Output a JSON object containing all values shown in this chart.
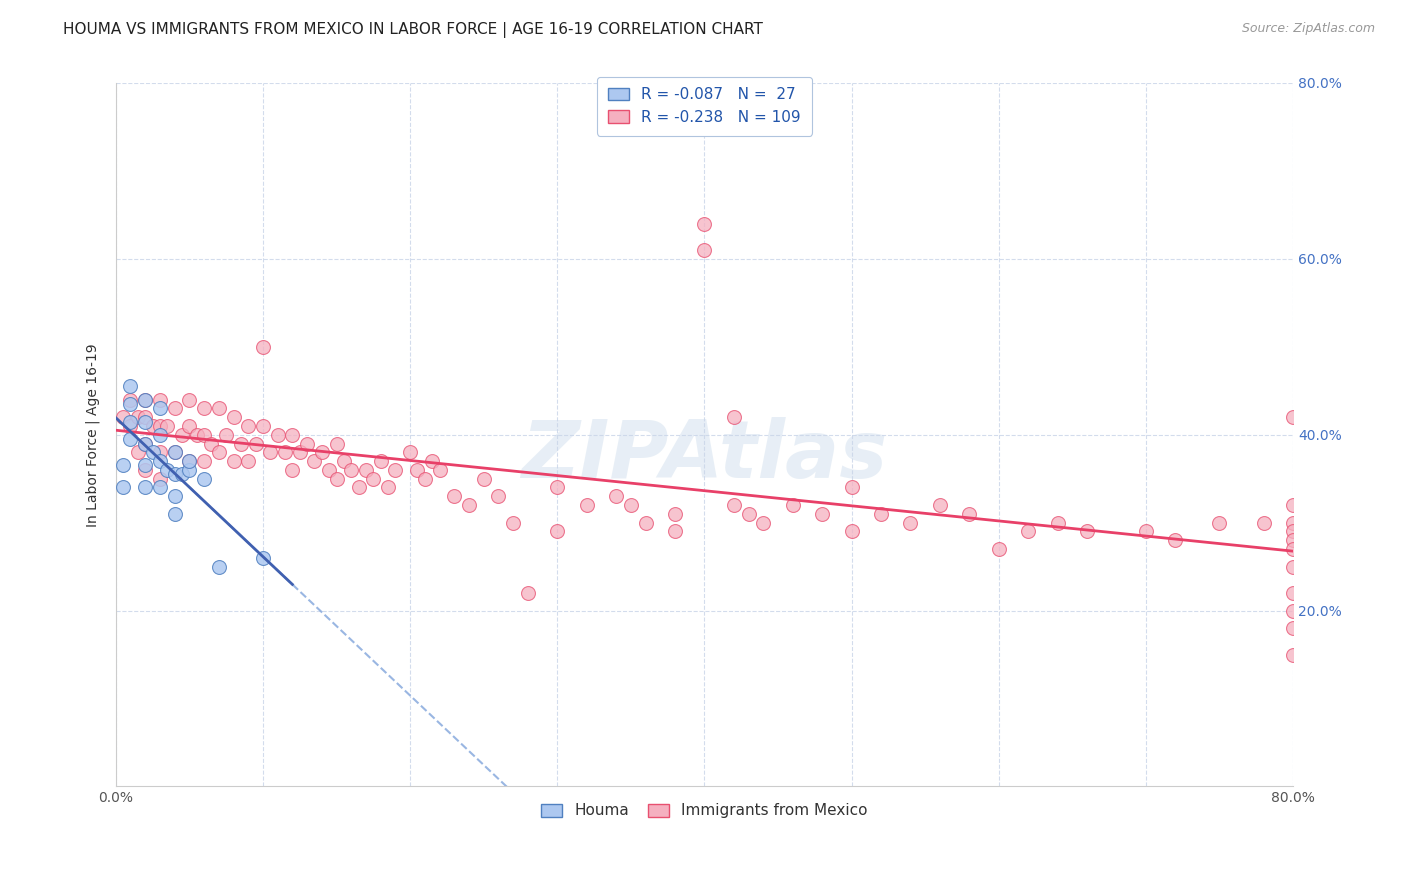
{
  "title": "HOUMA VS IMMIGRANTS FROM MEXICO IN LABOR FORCE | AGE 16-19 CORRELATION CHART",
  "source": "Source: ZipAtlas.com",
  "ylabel": "In Labor Force | Age 16-19",
  "legend_label_1": "Houma",
  "legend_label_2": "Immigrants from Mexico",
  "r1": -0.087,
  "n1": 27,
  "r2": -0.238,
  "n2": 109,
  "xlim": [
    0.0,
    0.8
  ],
  "ylim": [
    0.0,
    0.8
  ],
  "xtick_positions": [
    0.0,
    0.1,
    0.2,
    0.3,
    0.4,
    0.5,
    0.6,
    0.7,
    0.8
  ],
  "xtick_labels_shown": {
    "0": "0.0%",
    "8": "80.0%"
  },
  "right_ytick_labels": [
    "80.0%",
    "60.0%",
    "40.0%",
    "20.0%"
  ],
  "right_ytick_positions": [
    0.8,
    0.6,
    0.4,
    0.2
  ],
  "color_houma_fill": "#adc8f0",
  "color_houma_edge": "#5080c0",
  "color_mexico_fill": "#f5b0c0",
  "color_mexico_edge": "#e85070",
  "color_houma_line": "#4060b0",
  "color_mexico_line": "#e84068",
  "color_houma_dash": "#88aadd",
  "background_color": "#ffffff",
  "grid_color": "#c8d4e8",
  "watermark_color": "#d8e4f0",
  "houma_x": [
    0.005,
    0.005,
    0.01,
    0.01,
    0.01,
    0.01,
    0.02,
    0.02,
    0.02,
    0.02,
    0.02,
    0.025,
    0.03,
    0.03,
    0.03,
    0.03,
    0.035,
    0.04,
    0.04,
    0.04,
    0.04,
    0.045,
    0.05,
    0.05,
    0.06,
    0.07,
    0.1
  ],
  "houma_y": [
    0.365,
    0.34,
    0.455,
    0.435,
    0.415,
    0.395,
    0.44,
    0.415,
    0.39,
    0.365,
    0.34,
    0.38,
    0.43,
    0.4,
    0.37,
    0.34,
    0.36,
    0.38,
    0.355,
    0.33,
    0.31,
    0.355,
    0.36,
    0.37,
    0.35,
    0.25,
    0.26
  ],
  "mexico_x": [
    0.005,
    0.01,
    0.01,
    0.015,
    0.015,
    0.02,
    0.02,
    0.02,
    0.02,
    0.025,
    0.03,
    0.03,
    0.03,
    0.03,
    0.035,
    0.04,
    0.04,
    0.045,
    0.05,
    0.05,
    0.05,
    0.055,
    0.06,
    0.06,
    0.06,
    0.065,
    0.07,
    0.07,
    0.075,
    0.08,
    0.08,
    0.085,
    0.09,
    0.09,
    0.095,
    0.1,
    0.1,
    0.105,
    0.11,
    0.115,
    0.12,
    0.12,
    0.125,
    0.13,
    0.135,
    0.14,
    0.145,
    0.15,
    0.15,
    0.155,
    0.16,
    0.165,
    0.17,
    0.175,
    0.18,
    0.185,
    0.19,
    0.2,
    0.205,
    0.21,
    0.215,
    0.22,
    0.23,
    0.24,
    0.25,
    0.26,
    0.27,
    0.28,
    0.3,
    0.3,
    0.32,
    0.34,
    0.35,
    0.36,
    0.38,
    0.38,
    0.4,
    0.4,
    0.42,
    0.42,
    0.43,
    0.44,
    0.46,
    0.48,
    0.5,
    0.5,
    0.52,
    0.54,
    0.56,
    0.58,
    0.6,
    0.62,
    0.64,
    0.66,
    0.7,
    0.72,
    0.75,
    0.78,
    0.8,
    0.8,
    0.8,
    0.8,
    0.8,
    0.8,
    0.8,
    0.8,
    0.8,
    0.8,
    0.8
  ],
  "mexico_y": [
    0.42,
    0.44,
    0.41,
    0.42,
    0.38,
    0.44,
    0.42,
    0.39,
    0.36,
    0.41,
    0.44,
    0.41,
    0.38,
    0.35,
    0.41,
    0.43,
    0.38,
    0.4,
    0.44,
    0.41,
    0.37,
    0.4,
    0.43,
    0.4,
    0.37,
    0.39,
    0.43,
    0.38,
    0.4,
    0.42,
    0.37,
    0.39,
    0.41,
    0.37,
    0.39,
    0.5,
    0.41,
    0.38,
    0.4,
    0.38,
    0.4,
    0.36,
    0.38,
    0.39,
    0.37,
    0.38,
    0.36,
    0.39,
    0.35,
    0.37,
    0.36,
    0.34,
    0.36,
    0.35,
    0.37,
    0.34,
    0.36,
    0.38,
    0.36,
    0.35,
    0.37,
    0.36,
    0.33,
    0.32,
    0.35,
    0.33,
    0.3,
    0.22,
    0.34,
    0.29,
    0.32,
    0.33,
    0.32,
    0.3,
    0.31,
    0.29,
    0.64,
    0.61,
    0.42,
    0.32,
    0.31,
    0.3,
    0.32,
    0.31,
    0.34,
    0.29,
    0.31,
    0.3,
    0.32,
    0.31,
    0.27,
    0.29,
    0.3,
    0.29,
    0.29,
    0.28,
    0.3,
    0.3,
    0.42,
    0.32,
    0.3,
    0.29,
    0.28,
    0.27,
    0.25,
    0.22,
    0.2,
    0.18,
    0.15
  ]
}
